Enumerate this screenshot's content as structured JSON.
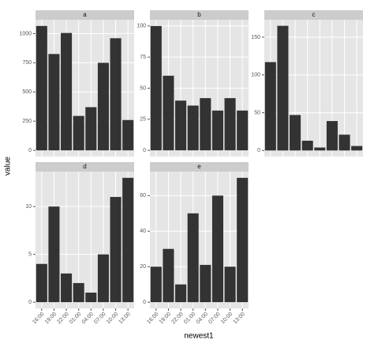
{
  "axis_labels": {
    "x": "newest1",
    "y": "value"
  },
  "categories": [
    "16:00",
    "19:00",
    "22:00",
    "01:00",
    "04:00",
    "07:00",
    "10:00",
    "13:00"
  ],
  "chart_data": [
    {
      "type": "bar",
      "title": "a",
      "values": [
        1065,
        825,
        1005,
        295,
        370,
        750,
        960,
        260
      ],
      "color": "#333333",
      "ylim": [
        -53,
        1118
      ],
      "yticks": [
        0,
        250,
        500,
        750,
        1000
      ],
      "grid": true
    },
    {
      "type": "bar",
      "title": "b",
      "values": [
        100,
        60,
        40,
        36,
        42,
        32,
        42,
        32
      ],
      "color": "#333333",
      "ylim": [
        -5,
        105
      ],
      "yticks": [
        0,
        25,
        50,
        75,
        100
      ],
      "grid": true
    },
    {
      "type": "bar",
      "title": "c",
      "values": [
        117,
        165,
        47,
        13,
        4,
        39,
        21,
        6
      ],
      "color": "#333333",
      "ylim": [
        -8,
        173
      ],
      "yticks": [
        0,
        50,
        100,
        150
      ],
      "grid": true
    },
    {
      "type": "bar",
      "title": "d",
      "values": [
        4,
        10,
        3,
        2,
        1,
        5,
        11,
        13
      ],
      "color": "#333333",
      "ylim": [
        -0.65,
        13.65
      ],
      "yticks": [
        0,
        5,
        10
      ],
      "grid": true
    },
    {
      "type": "bar",
      "title": "e",
      "values": [
        20,
        30,
        10,
        50,
        21,
        60,
        20,
        70
      ],
      "color": "#333333",
      "ylim": [
        -3.5,
        73.5
      ],
      "yticks": [
        0,
        20,
        40,
        60
      ],
      "grid": true
    }
  ]
}
